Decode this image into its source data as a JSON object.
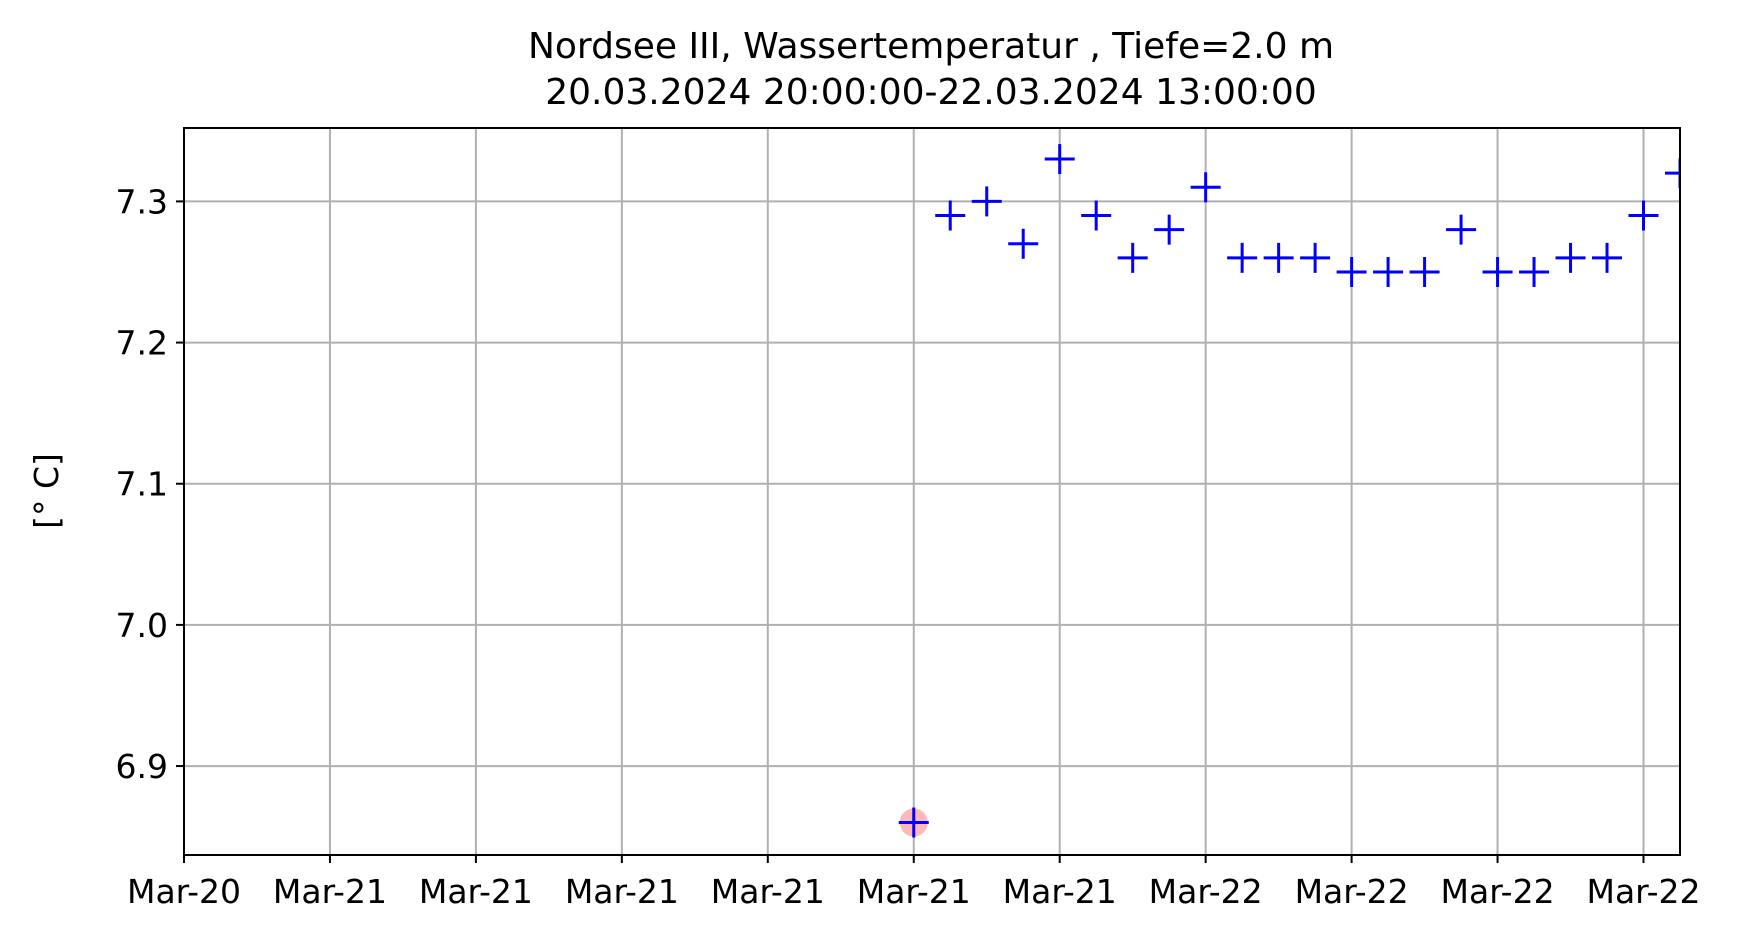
{
  "chart_data": {
    "type": "scatter",
    "title": "Nordsee III, Wassertemperatur , Tiefe=2.0 m",
    "subtitle": "20.03.2024 20:00:00-22.03.2024 13:00:00",
    "xlabel": "",
    "ylabel": "[° C]",
    "x_ticks": [
      {
        "label": "Mar-20",
        "x": "2024-03-20T20:00:00"
      },
      {
        "label": "Mar-21",
        "x": "2024-03-21T00:00:00"
      },
      {
        "label": "Mar-21",
        "x": "2024-03-21T04:00:00"
      },
      {
        "label": "Mar-21",
        "x": "2024-03-21T08:00:00"
      },
      {
        "label": "Mar-21",
        "x": "2024-03-21T12:00:00"
      },
      {
        "label": "Mar-21",
        "x": "2024-03-21T16:00:00"
      },
      {
        "label": "Mar-21",
        "x": "2024-03-21T20:00:00"
      },
      {
        "label": "Mar-22",
        "x": "2024-03-22T00:00:00"
      },
      {
        "label": "Mar-22",
        "x": "2024-03-22T04:00:00"
      },
      {
        "label": "Mar-22",
        "x": "2024-03-22T08:00:00"
      },
      {
        "label": "Mar-22",
        "x": "2024-03-22T12:00:00"
      }
    ],
    "y_ticks": [
      "6.9",
      "7.0",
      "7.1",
      "7.2",
      "7.3"
    ],
    "xlim": [
      "2024-03-20T20:00:00",
      "2024-03-22T13:00:00"
    ],
    "ylim": [
      6.837,
      7.352
    ],
    "grid": true,
    "marker": "+",
    "marker_color": "#0000ff",
    "highlight_color": "#ff9999",
    "series": [
      {
        "points": [
          {
            "x": "2024-03-21T16:00:00",
            "y": 6.86,
            "highlight": true
          },
          {
            "x": "2024-03-21T17:00:00",
            "y": 7.29
          },
          {
            "x": "2024-03-21T18:00:00",
            "y": 7.3
          },
          {
            "x": "2024-03-21T19:00:00",
            "y": 7.27
          },
          {
            "x": "2024-03-21T20:00:00",
            "y": 7.33
          },
          {
            "x": "2024-03-21T21:00:00",
            "y": 7.29
          },
          {
            "x": "2024-03-21T22:00:00",
            "y": 7.26
          },
          {
            "x": "2024-03-21T23:00:00",
            "y": 7.28
          },
          {
            "x": "2024-03-22T00:00:00",
            "y": 7.31
          },
          {
            "x": "2024-03-22T01:00:00",
            "y": 7.26
          },
          {
            "x": "2024-03-22T02:00:00",
            "y": 7.26
          },
          {
            "x": "2024-03-22T03:00:00",
            "y": 7.26
          },
          {
            "x": "2024-03-22T04:00:00",
            "y": 7.25
          },
          {
            "x": "2024-03-22T05:00:00",
            "y": 7.25
          },
          {
            "x": "2024-03-22T06:00:00",
            "y": 7.25
          },
          {
            "x": "2024-03-22T07:00:00",
            "y": 7.28
          },
          {
            "x": "2024-03-22T08:00:00",
            "y": 7.25
          },
          {
            "x": "2024-03-22T09:00:00",
            "y": 7.25
          },
          {
            "x": "2024-03-22T10:00:00",
            "y": 7.26
          },
          {
            "x": "2024-03-22T11:00:00",
            "y": 7.26
          },
          {
            "x": "2024-03-22T12:00:00",
            "y": 7.29
          },
          {
            "x": "2024-03-22T13:00:00",
            "y": 7.32
          }
        ]
      }
    ]
  }
}
